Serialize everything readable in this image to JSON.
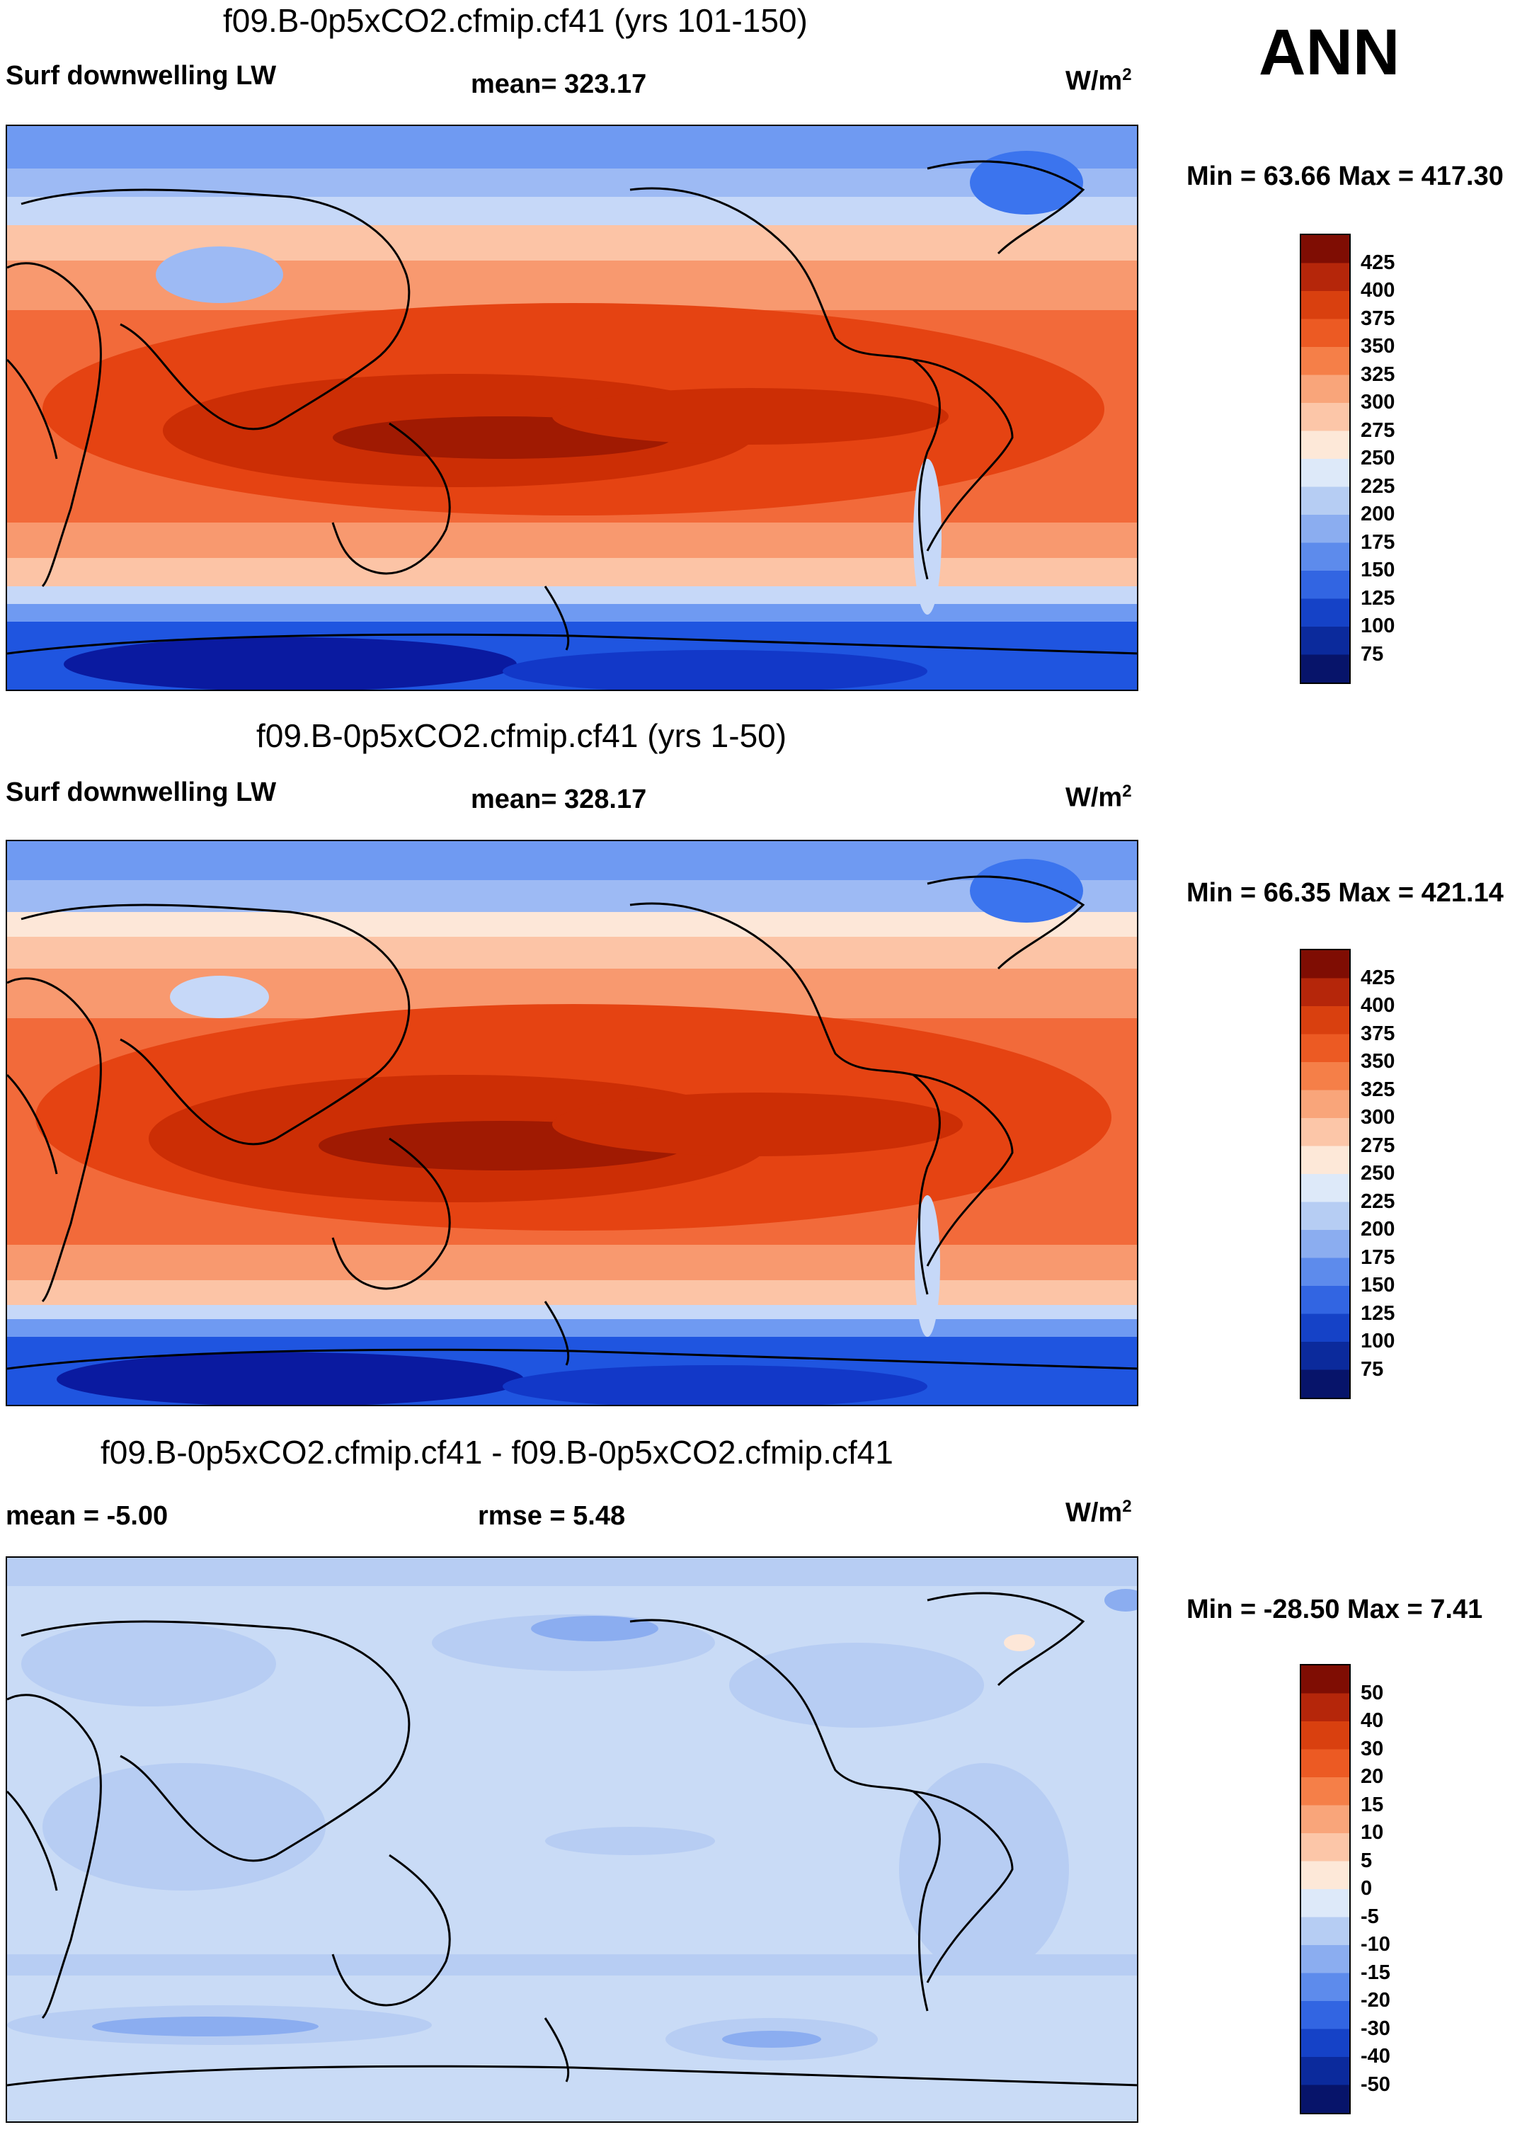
{
  "season": "ANN",
  "colors": {
    "warm": [
      "#05082e",
      "#0a1aa0",
      "#1238c8",
      "#1f55e0",
      "#3b74ee",
      "#6f9af2",
      "#9dbaf4",
      "#c6d8f8",
      "#e8f0fc",
      "#fde7d8",
      "#fcc4a6",
      "#f8996f",
      "#f26a3a",
      "#e54312",
      "#cc2e05",
      "#a01a02",
      "#7a0a00"
    ],
    "diff_ocean": "#c9dbf6",
    "diff_land": "#b7cdf3"
  },
  "panels": [
    {
      "id": "p1",
      "title": "f09.B-0p5xCO2.cfmip.cf41 (yrs 101-150)",
      "variable": "Surf downwelling LW",
      "stat": "mean= 323.17",
      "units_base": "W/m",
      "units_exp": "2",
      "minmax": "Min =  63.66 Max = 417.30",
      "colorbar": {
        "labels": [
          "425",
          "400",
          "375",
          "350",
          "325",
          "300",
          "275",
          "250",
          "225",
          "200",
          "175",
          "150",
          "125",
          "100",
          "75"
        ],
        "colors": [
          "#7f0d03",
          "#b5260a",
          "#d9400f",
          "#ec5a23",
          "#f57f48",
          "#f9a57a",
          "#fcc6a8",
          "#fde8d8",
          "#dde9f9",
          "#b6cdf3",
          "#8badf0",
          "#5d8bec",
          "#3265e2",
          "#1542c7",
          "#0b2a9c",
          "#07146a"
        ]
      }
    },
    {
      "id": "p2",
      "title": "f09.B-0p5xCO2.cfmip.cf41 (yrs 1-50)",
      "variable": "Surf downwelling LW",
      "stat": "mean= 328.17",
      "units_base": "W/m",
      "units_exp": "2",
      "minmax": "Min =  66.35 Max = 421.14",
      "colorbar": {
        "labels": [
          "425",
          "400",
          "375",
          "350",
          "325",
          "300",
          "275",
          "250",
          "225",
          "200",
          "175",
          "150",
          "125",
          "100",
          "75"
        ],
        "colors": [
          "#7f0d03",
          "#b5260a",
          "#d9400f",
          "#ec5a23",
          "#f57f48",
          "#f9a57a",
          "#fcc6a8",
          "#fde8d8",
          "#dde9f9",
          "#b6cdf3",
          "#8badf0",
          "#5d8bec",
          "#3265e2",
          "#1542c7",
          "#0b2a9c",
          "#07146a"
        ]
      }
    },
    {
      "id": "p3",
      "title": "f09.B-0p5xCO2.cfmip.cf41 - f09.B-0p5xCO2.cfmip.cf41",
      "variable": "mean =  -5.00",
      "stat": "rmse =   5.48",
      "units_base": "W/m",
      "units_exp": "2",
      "minmax": "Min = -28.50 Max =   7.41",
      "colorbar": {
        "labels": [
          "50",
          "40",
          "30",
          "20",
          "15",
          "10",
          "5",
          "0",
          "-5",
          "-10",
          "-15",
          "-20",
          "-30",
          "-40",
          "-50"
        ],
        "colors": [
          "#7f0d03",
          "#b5260a",
          "#d9400f",
          "#ec5a23",
          "#f57f48",
          "#f9a57a",
          "#fcc6a8",
          "#fde8d8",
          "#dde9f9",
          "#b6cdf3",
          "#8badf0",
          "#5d8bec",
          "#3265e2",
          "#1542c7",
          "#0b2a9c",
          "#07146a"
        ]
      }
    }
  ]
}
